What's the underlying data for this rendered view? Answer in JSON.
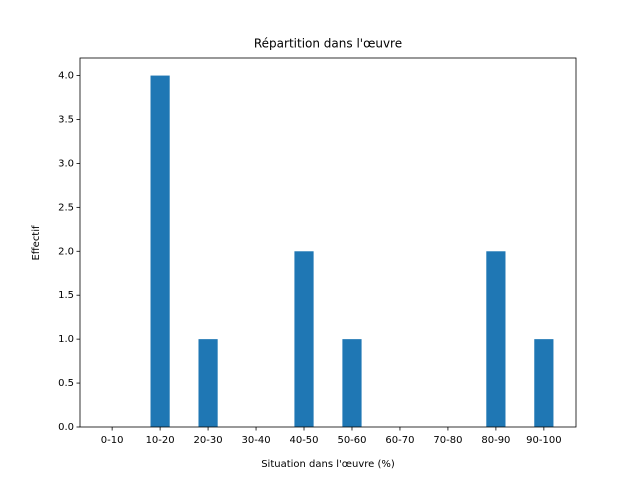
{
  "chart_data": {
    "type": "bar",
    "title": "Répartition dans l'œuvre",
    "x_label": "Situation dans l'œuvre (%)",
    "y_label": "Effectif",
    "categories": [
      "0-10",
      "10-20",
      "20-30",
      "30-40",
      "40-50",
      "50-60",
      "60-70",
      "70-80",
      "80-90",
      "90-100"
    ],
    "values": [
      0,
      4,
      1,
      0,
      2,
      1,
      0,
      0,
      2,
      1
    ],
    "color": "#1f77b4",
    "ylim": [
      0,
      4.2
    ],
    "yticks": [
      {
        "value": 0,
        "label": "0.0"
      },
      {
        "value": 0.5,
        "label": "0.5"
      },
      {
        "value": 1,
        "label": "1.0"
      },
      {
        "value": 1.5,
        "label": "1.5"
      },
      {
        "value": 2,
        "label": "2.0"
      },
      {
        "value": 2.5,
        "label": "2.5"
      },
      {
        "value": 3,
        "label": "3.0"
      },
      {
        "value": 3.5,
        "label": "3.5"
      },
      {
        "value": 4,
        "label": "4.0"
      }
    ],
    "grid": false
  }
}
